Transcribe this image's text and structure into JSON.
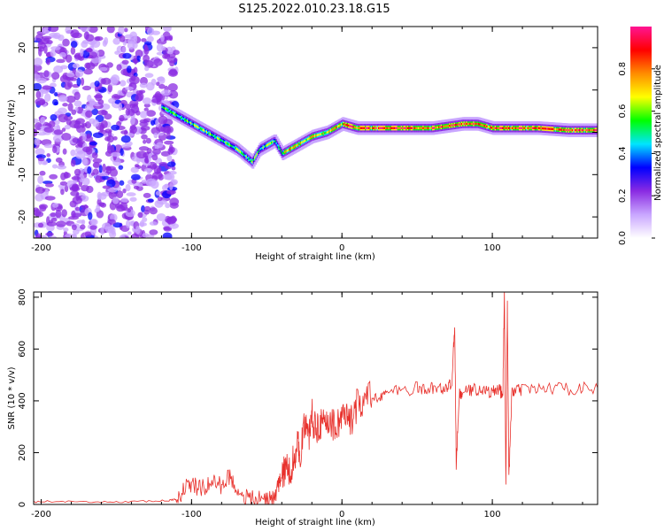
{
  "title": "S125.2022.010.23.18.G15",
  "chart_data": [
    {
      "type": "heatmap",
      "xlabel": "Height of straight line (km)",
      "ylabel": "Frequency (Hz)",
      "xlim": [
        -205,
        170
      ],
      "ylim": [
        -25,
        25
      ],
      "xticks": [
        -200,
        -100,
        0,
        100
      ],
      "yticks": [
        -20,
        -10,
        0,
        10,
        20
      ],
      "colorbar": {
        "label": "Normalized spectral amplitude",
        "ticks": [
          0.0,
          0.2,
          0.4,
          0.6,
          0.8
        ],
        "range": [
          0,
          1
        ],
        "colormap": [
          "#ffffff",
          "#c9a6ff",
          "#8a2be2",
          "#0000ff",
          "#00e5ff",
          "#00ff00",
          "#ffff00",
          "#ff8c00",
          "#ff0000",
          "#ff1493"
        ]
      },
      "ridge": {
        "x": [
          -120,
          -110,
          -100,
          -90,
          -80,
          -70,
          -60,
          -55,
          -50,
          -45,
          -40,
          -35,
          -30,
          -20,
          -10,
          0,
          10,
          20,
          40,
          60,
          80,
          90,
          100,
          110,
          130,
          150,
          170
        ],
        "y": [
          6,
          4,
          2,
          0,
          -2,
          -4,
          -7,
          -4,
          -3,
          -2,
          -5,
          -4,
          -3,
          -1,
          0,
          2,
          1,
          1,
          1,
          1,
          2,
          2,
          1,
          1,
          1,
          0.5,
          0.5
        ]
      },
      "grid": false,
      "legend": "none"
    },
    {
      "type": "line",
      "xlabel": "Height of straight line (km)",
      "ylabel": "SNR (10 * v/v)",
      "xlim": [
        -205,
        170
      ],
      "ylim": [
        0,
        820
      ],
      "xticks": [
        -200,
        -100,
        0,
        100
      ],
      "yticks": [
        0,
        200,
        400,
        600,
        800
      ],
      "series": [
        {
          "color": "#e8312c",
          "x": [
            -205,
            -190,
            -170,
            -150,
            -130,
            -115,
            -110,
            -105,
            -100,
            -95,
            -90,
            -85,
            -80,
            -75,
            -70,
            -65,
            -60,
            -55,
            -50,
            -45,
            -42,
            -40,
            -38,
            -35,
            -32,
            -30,
            -28,
            -25,
            -22,
            -20,
            -18,
            -15,
            -12,
            -10,
            -8,
            -5,
            -2,
            0,
            3,
            5,
            8,
            10,
            15,
            20,
            25,
            30,
            40,
            50,
            55,
            60,
            65,
            70,
            73,
            75,
            76,
            78,
            80,
            85,
            90,
            95,
            100,
            102,
            105,
            107,
            108,
            109,
            110,
            111,
            113,
            115,
            120,
            130,
            140,
            150,
            160,
            170
          ],
          "y": [
            10,
            12,
            8,
            10,
            12,
            15,
            20,
            60,
            80,
            60,
            70,
            90,
            70,
            110,
            60,
            30,
            20,
            20,
            25,
            20,
            80,
            100,
            140,
            120,
            180,
            230,
            200,
            300,
            260,
            350,
            290,
            320,
            300,
            310,
            330,
            300,
            320,
            340,
            330,
            310,
            360,
            380,
            400,
            410,
            420,
            430,
            440,
            450,
            440,
            450,
            445,
            455,
            460,
            700,
            150,
            420,
            430,
            440,
            445,
            440,
            430,
            445,
            440,
            420,
            820,
            80,
            780,
            100,
            430,
            440,
            440,
            445,
            450,
            445,
            450,
            450
          ]
        }
      ],
      "grid": false,
      "legend": "none"
    }
  ]
}
